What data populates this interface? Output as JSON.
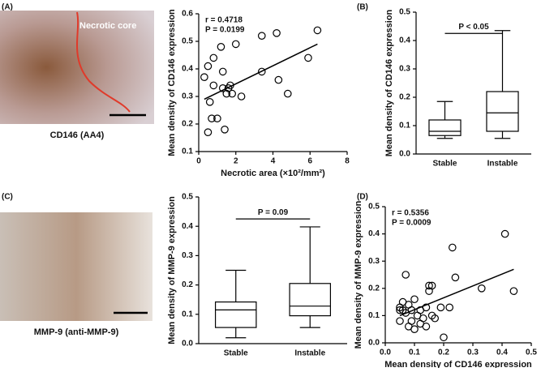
{
  "figures": [
    {
      "panel": "(A)",
      "label": "Necrotic core",
      "caption": "CD146 (AA4)"
    },
    {
      "panel": "(C)",
      "caption": "MMP-9 (anti-MMP-9)"
    }
  ],
  "chart_data": [
    {
      "type": "scatter",
      "xlabel": "Necrotic area (×10²/mm²)",
      "ylabel": "Mean density of CD146 expression",
      "annotations": [
        "r = 0.4718",
        "P = 0.0199"
      ],
      "x": [
        0.3,
        0.5,
        0.6,
        0.5,
        0.8,
        0.8,
        0.7,
        1.0,
        1.2,
        1.3,
        1.4,
        1.3,
        1.5,
        1.6,
        1.7,
        1.8,
        2.0,
        2.3,
        3.4,
        3.4,
        4.2,
        4.3,
        4.8,
        5.9,
        6.4
      ],
      "y": [
        0.37,
        0.17,
        0.28,
        0.41,
        0.44,
        0.34,
        0.22,
        0.22,
        0.48,
        0.39,
        0.18,
        0.33,
        0.31,
        0.33,
        0.34,
        0.31,
        0.49,
        0.3,
        0.52,
        0.39,
        0.53,
        0.36,
        0.31,
        0.44,
        0.54
      ],
      "trendline": {
        "x": [
          0.3,
          6.4
        ],
        "y": [
          0.29,
          0.49
        ]
      },
      "xlim": [
        0,
        8
      ],
      "xticks": [
        0,
        2,
        4,
        6,
        8
      ],
      "ylim": [
        0.1,
        0.6
      ],
      "yticks": [
        0.1,
        0.2,
        0.3,
        0.4,
        0.5,
        0.6
      ]
    },
    {
      "type": "box",
      "panel": "(B)",
      "ylabel": "Mean density of CD146 expression",
      "annotation": "P < 0.05",
      "categories": [
        "Stable",
        "Instable"
      ],
      "boxes": [
        {
          "min": 0.055,
          "q1": 0.065,
          "median": 0.08,
          "q3": 0.12,
          "max": 0.185
        },
        {
          "min": 0.055,
          "q1": 0.08,
          "median": 0.145,
          "q3": 0.22,
          "max": 0.435
        }
      ],
      "ylim": [
        0,
        0.5
      ],
      "yticks": [
        {
          "value": 0,
          "label": "0.0"
        },
        0.1,
        0.2,
        0.3,
        0.4,
        0.5
      ]
    },
    {
      "type": "box",
      "ylabel": "Mean density of MMP-9 expression",
      "annotation": "P = 0.09",
      "categories": [
        "Stable",
        "Instable"
      ],
      "boxes": [
        {
          "min": 0.02,
          "q1": 0.055,
          "median": 0.115,
          "q3": 0.142,
          "max": 0.25
        },
        {
          "min": 0.055,
          "q1": 0.095,
          "median": 0.128,
          "q3": 0.205,
          "max": 0.398
        }
      ],
      "ylim": [
        0,
        0.5
      ],
      "yticks": [
        {
          "value": 0,
          "label": "0.0"
        },
        0.1,
        0.2,
        0.3,
        0.4,
        0.5
      ]
    },
    {
      "type": "scatter",
      "panel": "(D)",
      "xlabel": "Mean density of CD146 expression",
      "ylabel": "Mean density of MMP-9  expression",
      "annotations": [
        "r = 0.5356",
        "P = 0.0009"
      ],
      "x": [
        0.05,
        0.05,
        0.06,
        0.06,
        0.07,
        0.07,
        0.08,
        0.08,
        0.09,
        0.09,
        0.1,
        0.1,
        0.11,
        0.12,
        0.12,
        0.13,
        0.14,
        0.14,
        0.15,
        0.15,
        0.16,
        0.16,
        0.17,
        0.19,
        0.2,
        0.22,
        0.23,
        0.24,
        0.33,
        0.41,
        0.44,
        0.05
      ],
      "y": [
        0.08,
        0.13,
        0.15,
        0.12,
        0.25,
        0.11,
        0.14,
        0.06,
        0.08,
        0.12,
        0.05,
        0.16,
        0.1,
        0.12,
        0.07,
        0.09,
        0.13,
        0.06,
        0.21,
        0.19,
        0.1,
        0.21,
        0.09,
        0.13,
        0.02,
        0.13,
        0.35,
        0.24,
        0.2,
        0.4,
        0.19,
        0.12
      ],
      "trendline": {
        "x": [
          0.05,
          0.44
        ],
        "y": [
          0.1,
          0.27
        ]
      },
      "xlim": [
        0,
        0.5
      ],
      "xticks": [
        {
          "value": 0,
          "label": "0.0"
        },
        0.1,
        0.2,
        0.3,
        0.4,
        0.5
      ],
      "ylim": [
        0,
        0.5
      ],
      "yticks": [
        {
          "value": 0,
          "label": "0.0"
        },
        0.1,
        0.2,
        0.3,
        0.4,
        0.5
      ]
    }
  ]
}
